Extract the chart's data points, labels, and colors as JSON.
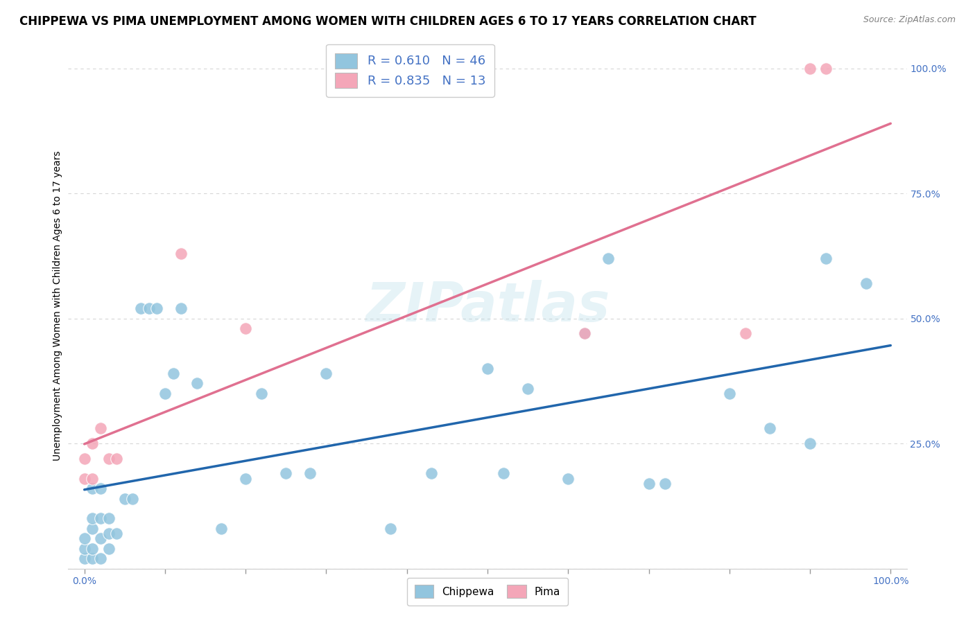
{
  "title": "CHIPPEWA VS PIMA UNEMPLOYMENT AMONG WOMEN WITH CHILDREN AGES 6 TO 17 YEARS CORRELATION CHART",
  "source": "Source: ZipAtlas.com",
  "ylabel": "Unemployment Among Women with Children Ages 6 to 17 years",
  "chippewa_R": 0.61,
  "chippewa_N": 46,
  "pima_R": 0.835,
  "pima_N": 13,
  "chippewa_color": "#92C5DE",
  "pima_color": "#F4A6B8",
  "chippewa_line_color": "#2166AC",
  "pima_line_color": "#E07090",
  "background_color": "#FFFFFF",
  "watermark": "ZIPatlas",
  "chippewa_x": [
    0.0,
    0.0,
    0.0,
    0.01,
    0.01,
    0.01,
    0.01,
    0.01,
    0.02,
    0.02,
    0.02,
    0.02,
    0.03,
    0.03,
    0.03,
    0.04,
    0.05,
    0.06,
    0.07,
    0.08,
    0.09,
    0.1,
    0.11,
    0.12,
    0.14,
    0.17,
    0.2,
    0.22,
    0.25,
    0.28,
    0.3,
    0.38,
    0.43,
    0.5,
    0.52,
    0.55,
    0.6,
    0.62,
    0.65,
    0.7,
    0.72,
    0.8,
    0.85,
    0.9,
    0.92,
    0.97
  ],
  "chippewa_y": [
    0.02,
    0.04,
    0.06,
    0.02,
    0.04,
    0.08,
    0.1,
    0.16,
    0.02,
    0.06,
    0.1,
    0.16,
    0.04,
    0.07,
    0.1,
    0.07,
    0.14,
    0.14,
    0.52,
    0.52,
    0.52,
    0.35,
    0.39,
    0.52,
    0.37,
    0.08,
    0.18,
    0.35,
    0.19,
    0.19,
    0.39,
    0.08,
    0.19,
    0.4,
    0.19,
    0.36,
    0.18,
    0.47,
    0.62,
    0.17,
    0.17,
    0.35,
    0.28,
    0.25,
    0.62,
    0.57
  ],
  "pima_x": [
    0.0,
    0.0,
    0.01,
    0.01,
    0.02,
    0.03,
    0.04,
    0.12,
    0.2,
    0.62,
    0.82,
    0.9,
    0.92
  ],
  "pima_y": [
    0.18,
    0.22,
    0.18,
    0.25,
    0.28,
    0.22,
    0.22,
    0.63,
    0.48,
    0.47,
    0.47,
    1.0,
    1.0
  ],
  "ylim": [
    0,
    1.05
  ],
  "xlim": [
    -0.02,
    1.02
  ],
  "yticks": [
    0.0,
    0.25,
    0.5,
    0.75,
    1.0
  ],
  "ytick_labels": [
    "",
    "25.0%",
    "50.0%",
    "75.0%",
    "100.0%"
  ],
  "grid_color": "#CCCCCC",
  "title_fontsize": 12,
  "ylabel_fontsize": 10,
  "tick_fontsize": 10,
  "tick_color": "#4472C4"
}
